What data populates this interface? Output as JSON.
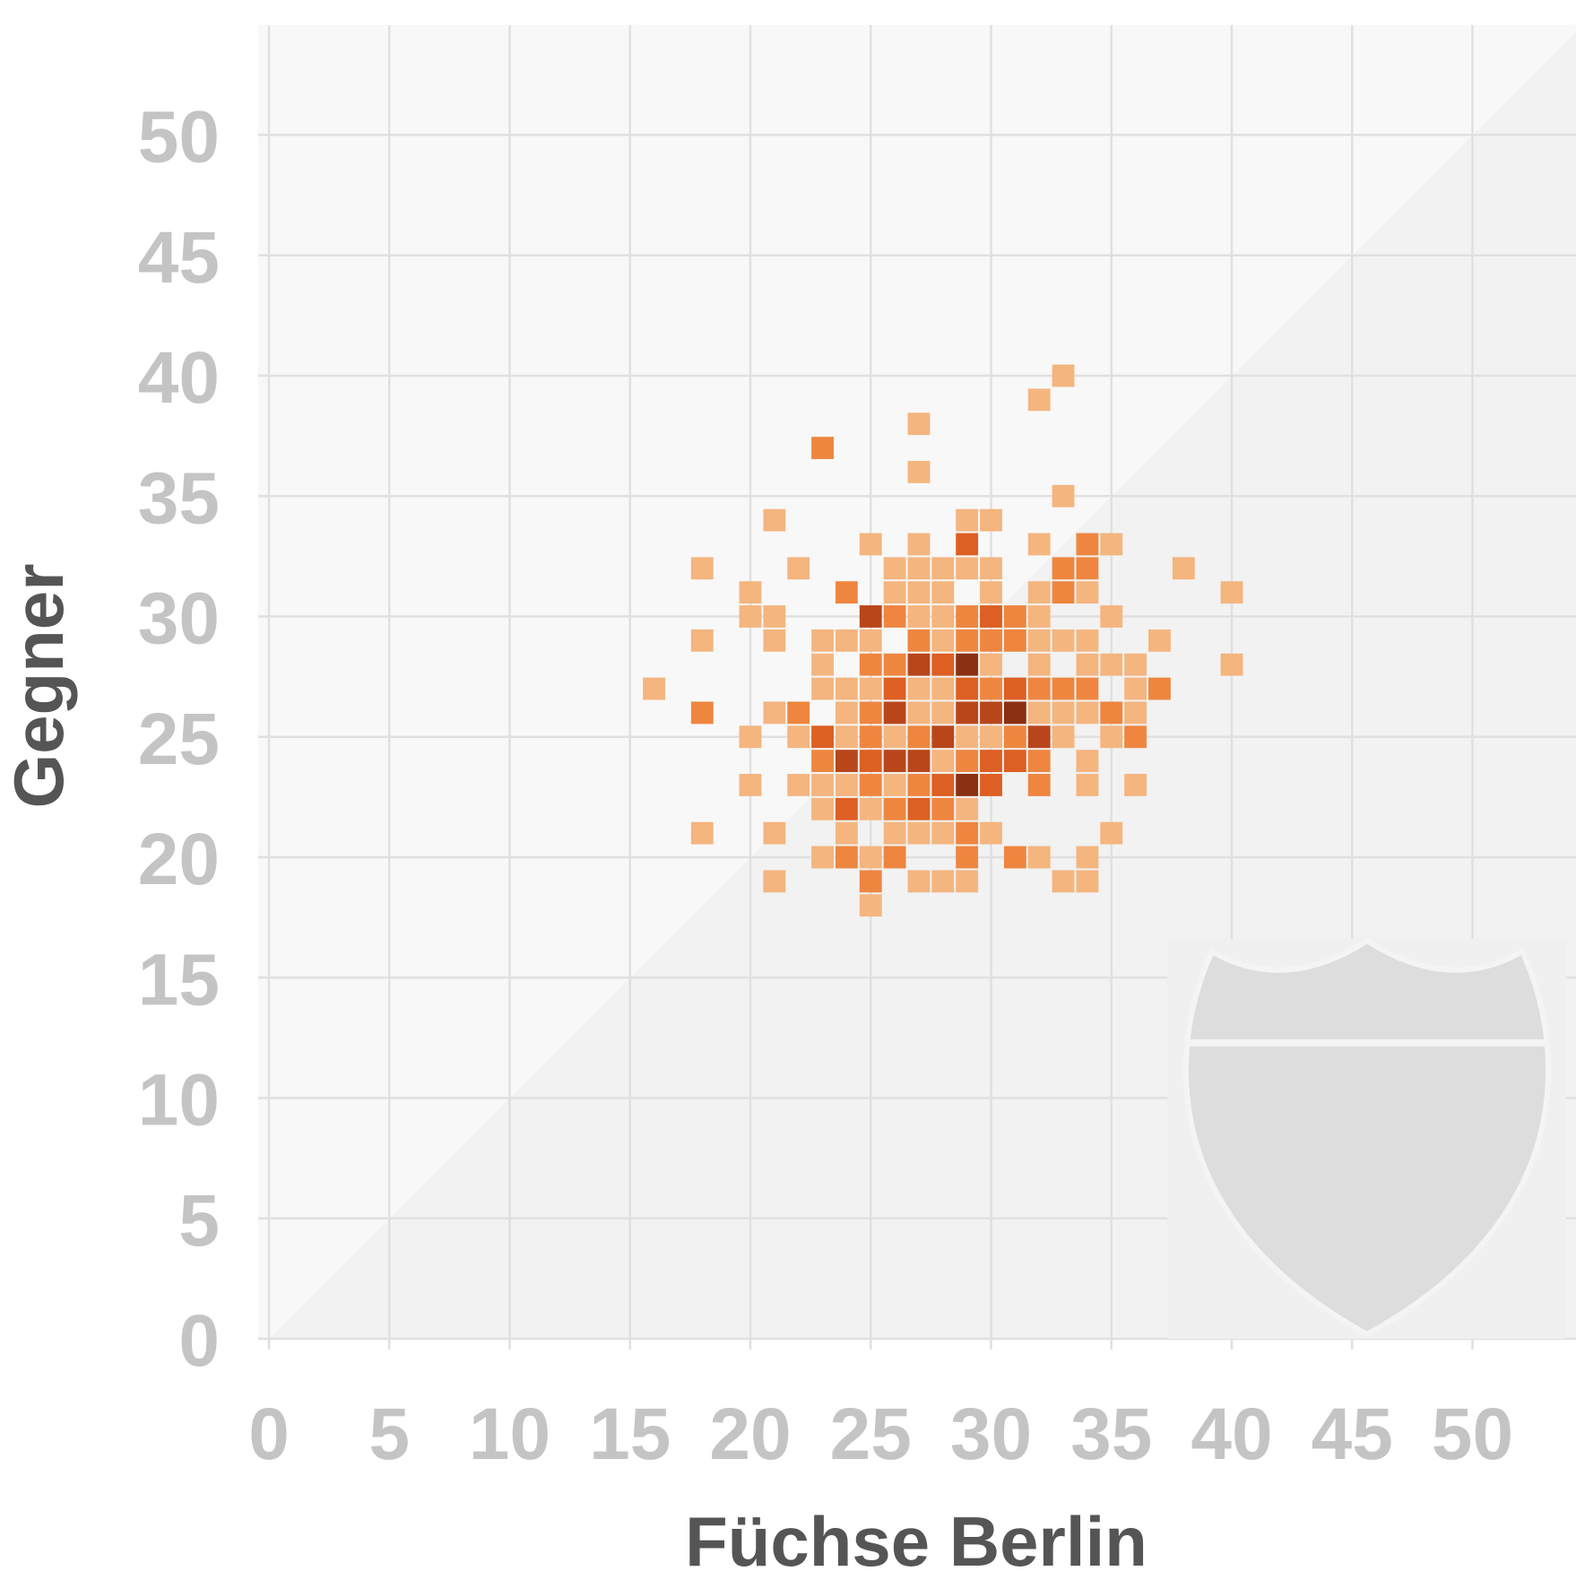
{
  "chart_data": {
    "type": "heatmap",
    "title": "",
    "xlabel": "Füchse Berlin",
    "ylabel": "Gegner",
    "xlim": [
      0,
      54
    ],
    "ylim": [
      0,
      54
    ],
    "x_ticks": [
      0,
      5,
      10,
      15,
      20,
      25,
      30,
      35,
      40,
      45,
      50
    ],
    "y_ticks": [
      0,
      5,
      10,
      15,
      20,
      25,
      30,
      35,
      40,
      45,
      50
    ],
    "grid": true,
    "diagonal_line": "x = y",
    "logo_placement": "bottom-right",
    "colors": {
      "background": "#f8f8f8",
      "lower_triangle": "#f2f2f2",
      "grid": "#e0e0e0",
      "tick_label": "#c4c4c4",
      "axis_title": "#555555",
      "levels": [
        "#f4b57f",
        "#ee8640",
        "#dd5f23",
        "#b9461b",
        "#8b3012"
      ],
      "logo": "#dddddd"
    },
    "value_levels": "1 = lightest, 5 = darkest (relative frequency of a result)",
    "cells": [
      [
        33,
        40,
        1
      ],
      [
        32,
        39,
        1
      ],
      [
        27,
        38,
        1
      ],
      [
        23,
        37,
        2
      ],
      [
        27,
        36,
        1
      ],
      [
        33,
        35,
        1
      ],
      [
        21,
        34,
        1
      ],
      [
        29,
        34,
        1
      ],
      [
        30,
        34,
        1
      ],
      [
        25,
        33,
        1
      ],
      [
        27,
        33,
        1
      ],
      [
        29,
        33,
        3
      ],
      [
        32,
        33,
        1
      ],
      [
        34,
        33,
        2
      ],
      [
        35,
        33,
        1
      ],
      [
        18,
        32,
        1
      ],
      [
        22,
        32,
        1
      ],
      [
        26,
        32,
        1
      ],
      [
        27,
        32,
        1
      ],
      [
        28,
        32,
        1
      ],
      [
        29,
        32,
        1
      ],
      [
        30,
        32,
        1
      ],
      [
        33,
        32,
        2
      ],
      [
        34,
        32,
        2
      ],
      [
        38,
        32,
        1
      ],
      [
        20,
        31,
        1
      ],
      [
        24,
        31,
        2
      ],
      [
        26,
        31,
        1
      ],
      [
        27,
        31,
        1
      ],
      [
        28,
        31,
        1
      ],
      [
        30,
        31,
        1
      ],
      [
        32,
        31,
        1
      ],
      [
        33,
        31,
        2
      ],
      [
        34,
        31,
        1
      ],
      [
        40,
        31,
        1
      ],
      [
        20,
        30,
        1
      ],
      [
        21,
        30,
        1
      ],
      [
        25,
        30,
        4
      ],
      [
        26,
        30,
        2
      ],
      [
        27,
        30,
        1
      ],
      [
        28,
        30,
        1
      ],
      [
        29,
        30,
        2
      ],
      [
        30,
        30,
        3
      ],
      [
        31,
        30,
        2
      ],
      [
        32,
        30,
        1
      ],
      [
        35,
        30,
        1
      ],
      [
        18,
        29,
        1
      ],
      [
        21,
        29,
        1
      ],
      [
        23,
        29,
        1
      ],
      [
        24,
        29,
        1
      ],
      [
        25,
        29,
        1
      ],
      [
        27,
        29,
        2
      ],
      [
        28,
        29,
        1
      ],
      [
        29,
        29,
        2
      ],
      [
        30,
        29,
        2
      ],
      [
        31,
        29,
        2
      ],
      [
        32,
        29,
        1
      ],
      [
        33,
        29,
        1
      ],
      [
        34,
        29,
        1
      ],
      [
        37,
        29,
        1
      ],
      [
        23,
        28,
        1
      ],
      [
        25,
        28,
        2
      ],
      [
        26,
        28,
        2
      ],
      [
        27,
        28,
        4
      ],
      [
        28,
        28,
        3
      ],
      [
        29,
        28,
        5
      ],
      [
        30,
        28,
        1
      ],
      [
        32,
        28,
        1
      ],
      [
        34,
        28,
        1
      ],
      [
        35,
        28,
        1
      ],
      [
        36,
        28,
        1
      ],
      [
        40,
        28,
        1
      ],
      [
        16,
        27,
        1
      ],
      [
        23,
        27,
        1
      ],
      [
        24,
        27,
        1
      ],
      [
        25,
        27,
        1
      ],
      [
        26,
        27,
        3
      ],
      [
        27,
        27,
        1
      ],
      [
        28,
        27,
        1
      ],
      [
        29,
        27,
        3
      ],
      [
        30,
        27,
        2
      ],
      [
        31,
        27,
        3
      ],
      [
        32,
        27,
        2
      ],
      [
        33,
        27,
        2
      ],
      [
        34,
        27,
        2
      ],
      [
        36,
        27,
        1
      ],
      [
        37,
        27,
        2
      ],
      [
        18,
        26,
        2
      ],
      [
        21,
        26,
        1
      ],
      [
        22,
        26,
        2
      ],
      [
        24,
        26,
        1
      ],
      [
        25,
        26,
        2
      ],
      [
        26,
        26,
        4
      ],
      [
        27,
        26,
        1
      ],
      [
        28,
        26,
        1
      ],
      [
        29,
        26,
        4
      ],
      [
        30,
        26,
        4
      ],
      [
        31,
        26,
        5
      ],
      [
        32,
        26,
        1
      ],
      [
        33,
        26,
        1
      ],
      [
        34,
        26,
        1
      ],
      [
        35,
        26,
        2
      ],
      [
        36,
        26,
        1
      ],
      [
        20,
        25,
        1
      ],
      [
        22,
        25,
        1
      ],
      [
        23,
        25,
        3
      ],
      [
        24,
        25,
        1
      ],
      [
        25,
        25,
        2
      ],
      [
        26,
        25,
        1
      ],
      [
        27,
        25,
        2
      ],
      [
        28,
        25,
        4
      ],
      [
        29,
        25,
        1
      ],
      [
        30,
        25,
        1
      ],
      [
        31,
        25,
        2
      ],
      [
        32,
        25,
        4
      ],
      [
        33,
        25,
        1
      ],
      [
        35,
        25,
        1
      ],
      [
        36,
        25,
        2
      ],
      [
        23,
        24,
        2
      ],
      [
        24,
        24,
        4
      ],
      [
        25,
        24,
        3
      ],
      [
        26,
        24,
        4
      ],
      [
        27,
        24,
        4
      ],
      [
        28,
        24,
        1
      ],
      [
        29,
        24,
        2
      ],
      [
        30,
        24,
        3
      ],
      [
        31,
        24,
        3
      ],
      [
        32,
        24,
        2
      ],
      [
        34,
        24,
        1
      ],
      [
        20,
        23,
        1
      ],
      [
        22,
        23,
        1
      ],
      [
        23,
        23,
        1
      ],
      [
        24,
        23,
        1
      ],
      [
        25,
        23,
        2
      ],
      [
        26,
        23,
        1
      ],
      [
        27,
        23,
        2
      ],
      [
        28,
        23,
        3
      ],
      [
        29,
        23,
        5
      ],
      [
        30,
        23,
        3
      ],
      [
        32,
        23,
        2
      ],
      [
        34,
        23,
        1
      ],
      [
        36,
        23,
        1
      ],
      [
        23,
        22,
        1
      ],
      [
        24,
        22,
        3
      ],
      [
        25,
        22,
        1
      ],
      [
        26,
        22,
        2
      ],
      [
        27,
        22,
        3
      ],
      [
        28,
        22,
        2
      ],
      [
        29,
        22,
        1
      ],
      [
        18,
        21,
        1
      ],
      [
        21,
        21,
        1
      ],
      [
        24,
        21,
        1
      ],
      [
        26,
        21,
        1
      ],
      [
        27,
        21,
        1
      ],
      [
        28,
        21,
        1
      ],
      [
        29,
        21,
        2
      ],
      [
        30,
        21,
        1
      ],
      [
        35,
        21,
        1
      ],
      [
        23,
        20,
        1
      ],
      [
        24,
        20,
        2
      ],
      [
        25,
        20,
        1
      ],
      [
        26,
        20,
        2
      ],
      [
        29,
        20,
        2
      ],
      [
        31,
        20,
        2
      ],
      [
        32,
        20,
        1
      ],
      [
        34,
        20,
        1
      ],
      [
        21,
        19,
        1
      ],
      [
        25,
        19,
        2
      ],
      [
        27,
        19,
        1
      ],
      [
        28,
        19,
        1
      ],
      [
        29,
        19,
        1
      ],
      [
        33,
        19,
        1
      ],
      [
        34,
        19,
        1
      ],
      [
        25,
        18,
        1
      ]
    ]
  }
}
